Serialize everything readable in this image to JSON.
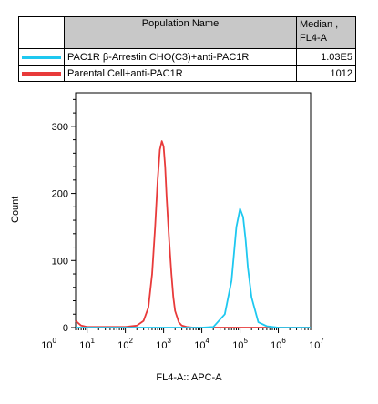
{
  "legend": {
    "header_name": "Population Name",
    "header_median_line1": "Median ,",
    "header_median_line2": "FL4-A",
    "rows": [
      {
        "name": "PAC1R β-Arrestin CHO(C3)+anti-PAC1R",
        "median": "1.03E5",
        "color": "#1ec8f0"
      },
      {
        "name": "Parental Cell+anti-PAC1R",
        "median": "1012",
        "color": "#e83a3a"
      }
    ]
  },
  "chart_data": {
    "type": "line",
    "xlabel": "FL4-A:: APC-A",
    "ylabel": "Count",
    "x_scale": "log",
    "xlim": [
      5,
      7000000
    ],
    "ylim": [
      0,
      350
    ],
    "y_ticks": [
      0,
      100,
      200,
      300
    ],
    "x_ticks": [
      "10^0",
      "10^1",
      "10^2",
      "10^3",
      "10^4",
      "10^5",
      "10^6",
      "10^7"
    ],
    "series": [
      {
        "name": "Parental Cell+anti-PAC1R",
        "color": "#e83a3a",
        "x": [
          5,
          7,
          10,
          50,
          100,
          200,
          300,
          400,
          500,
          600,
          700,
          800,
          900,
          1000,
          1100,
          1200,
          1400,
          1600,
          1800,
          2000,
          2500,
          3000,
          4000,
          6000,
          10000,
          100000,
          1000000,
          7000000
        ],
        "y": [
          10,
          3,
          1,
          1,
          1,
          3,
          10,
          30,
          80,
          150,
          220,
          265,
          278,
          270,
          240,
          195,
          130,
          80,
          45,
          25,
          8,
          3,
          1,
          0,
          0,
          0,
          0,
          0
        ]
      },
      {
        "name": "PAC1R β-Arrestin CHO(C3)+anti-PAC1R",
        "color": "#1ec8f0",
        "x": [
          5,
          1000,
          10000,
          20000,
          40000,
          60000,
          80000,
          100000,
          120000,
          140000,
          160000,
          200000,
          300000,
          500000,
          1000000,
          7000000
        ],
        "y": [
          0,
          0,
          0,
          1,
          20,
          70,
          150,
          177,
          165,
          130,
          90,
          45,
          8,
          2,
          0,
          0
        ]
      }
    ]
  }
}
